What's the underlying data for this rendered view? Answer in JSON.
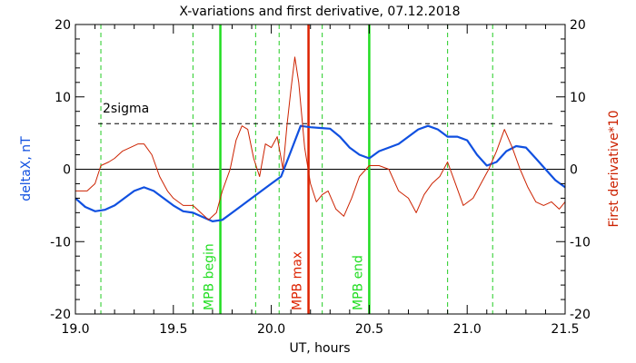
{
  "chart_data": {
    "type": "line",
    "title": "X-variations and first derivative, 07.12.2018",
    "xlabel": "UT, hours",
    "ylabel_left": "deltaX, nT",
    "ylabel_right": "First derivative*10",
    "xlim": [
      19.0,
      21.5
    ],
    "ylim": [
      -20,
      20
    ],
    "x_ticks": [
      "19.0",
      "19.5",
      "20.0",
      "20.5",
      "21.0",
      "21.5"
    ],
    "x_tick_values": [
      19.0,
      19.5,
      20.0,
      20.5,
      21.0,
      21.5
    ],
    "y_ticks": [
      "-20",
      "-10",
      "0",
      "10",
      "20"
    ],
    "y_tick_values": [
      -20,
      -10,
      0,
      10,
      20
    ],
    "threshold": {
      "label": "2sigma",
      "value": 6.3
    },
    "dashed_verticals": [
      19.13,
      19.6,
      19.92,
      20.04,
      20.26,
      20.9,
      21.13
    ],
    "markers": [
      {
        "x": 19.74,
        "label": "MPB begin",
        "color": "#22dd22"
      },
      {
        "x": 20.19,
        "label": "MPB max",
        "color": "#dd2200"
      },
      {
        "x": 20.5,
        "label": "MPB end",
        "color": "#22dd22"
      }
    ],
    "series": [
      {
        "axis": "left",
        "color": "#1050e0",
        "x": [
          19.0,
          19.05,
          19.1,
          19.15,
          19.2,
          19.25,
          19.3,
          19.35,
          19.4,
          19.45,
          19.5,
          19.55,
          19.6,
          19.65,
          19.7,
          19.75,
          19.8,
          19.85,
          19.9,
          19.95,
          20.0,
          20.05,
          20.1,
          20.15,
          20.2,
          20.25,
          20.3,
          20.35,
          20.4,
          20.45,
          20.5,
          20.55,
          20.6,
          20.65,
          20.7,
          20.75,
          20.8,
          20.85,
          20.9,
          20.95,
          21.0,
          21.05,
          21.1,
          21.15,
          21.2,
          21.25,
          21.3,
          21.35,
          21.4,
          21.45,
          21.5
        ],
        "values": [
          -4.0,
          -5.2,
          -5.8,
          -5.6,
          -5.0,
          -4.0,
          -3.0,
          -2.5,
          -3.0,
          -4.0,
          -5.0,
          -5.8,
          -6.0,
          -6.6,
          -7.2,
          -7.0,
          -6.0,
          -5.0,
          -4.0,
          -3.0,
          -2.0,
          -1.0,
          2.5,
          6.0,
          5.8,
          5.7,
          5.6,
          4.5,
          3.0,
          2.0,
          1.5,
          2.5,
          3.0,
          3.5,
          4.5,
          5.5,
          6.0,
          5.5,
          4.5,
          4.5,
          4.0,
          2.0,
          0.5,
          1.0,
          2.5,
          3.2,
          3.0,
          1.5,
          0.0,
          -1.5,
          -2.5
        ]
      },
      {
        "axis": "right",
        "color": "#cc2200",
        "x": [
          19.0,
          19.03,
          19.06,
          19.1,
          19.13,
          19.17,
          19.2,
          19.24,
          19.28,
          19.32,
          19.35,
          19.39,
          19.43,
          19.47,
          19.5,
          19.55,
          19.6,
          19.64,
          19.68,
          19.72,
          19.75,
          19.79,
          19.82,
          19.85,
          19.88,
          19.91,
          19.94,
          19.97,
          20.0,
          20.03,
          20.06,
          20.08,
          20.1,
          20.12,
          20.14,
          20.17,
          20.2,
          20.23,
          20.26,
          20.29,
          20.33,
          20.37,
          20.41,
          20.45,
          20.5,
          20.55,
          20.6,
          20.65,
          20.7,
          20.74,
          20.78,
          20.82,
          20.86,
          20.9,
          20.94,
          20.98,
          21.03,
          21.07,
          21.11,
          21.15,
          21.19,
          21.23,
          21.27,
          21.31,
          21.35,
          21.39,
          21.43,
          21.47,
          21.5
        ],
        "values": [
          -3.0,
          -3.0,
          -3.0,
          -2.0,
          0.5,
          1.0,
          1.5,
          2.5,
          3.0,
          3.5,
          3.5,
          2.0,
          -1.0,
          -3.0,
          -4.0,
          -5.0,
          -5.0,
          -6.0,
          -7.0,
          -6.0,
          -3.0,
          0.0,
          4.0,
          6.0,
          5.5,
          1.5,
          -1.0,
          3.5,
          3.0,
          4.5,
          0.0,
          6.0,
          11.0,
          15.5,
          12.0,
          3.0,
          -2.0,
          -4.5,
          -3.5,
          -3.0,
          -5.5,
          -6.5,
          -4.0,
          -1.0,
          0.5,
          0.5,
          0.0,
          -3.0,
          -4.0,
          -6.0,
          -3.5,
          -2.0,
          -1.0,
          1.0,
          -2.0,
          -5.0,
          -4.0,
          -2.0,
          0.0,
          2.5,
          5.5,
          3.0,
          0.0,
          -2.5,
          -4.5,
          -5.0,
          -4.5,
          -5.5,
          -4.5
        ]
      }
    ]
  }
}
